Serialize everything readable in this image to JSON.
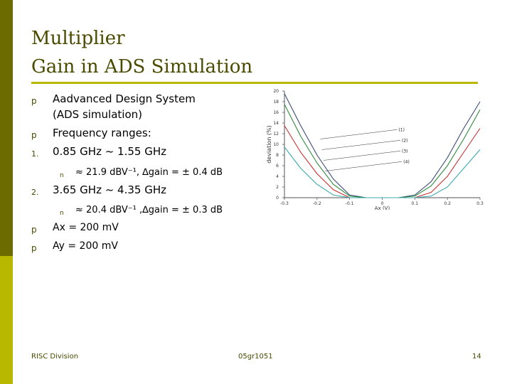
{
  "title": {
    "line1": "Multiplier",
    "line2": "Gain in ADS Simulation"
  },
  "bullets": {
    "b1_marker": "p",
    "b1_line1": "Aadvanced Design System",
    "b1_line2": "(ADS simulation)",
    "b2_marker": "p",
    "b2": "Frequency ranges:",
    "n1_marker": "1.",
    "n1": "0.85 GHz ~ 1.55 GHz",
    "n1_sub_marker": "n",
    "n1_sub": "≈ 21.9 dBV⁻¹, ∆gain = ± 0.4 dB",
    "n2_marker": "2.",
    "n2": "3.65 GHz ~ 4.35 GHz",
    "n2_sub_marker": "n",
    "n2_sub": "≈ 20.4 dBV⁻¹ ,∆gain = ± 0.3 dB",
    "b3_marker": "p",
    "b3": "Ax = 200 mV",
    "b4_marker": "p",
    "b4": "Ay = 200 mV"
  },
  "footer": {
    "left": "RISC Division",
    "center": "05gr1051",
    "right": "14"
  },
  "colors": {
    "sidebar_dark": "#6b6b00",
    "sidebar_light": "#b8b800",
    "title": "#4a4a00"
  },
  "chart_data": {
    "type": "line",
    "xlabel": "Ax (V)",
    "ylabel": "deviation (%)",
    "xlim": [
      -0.3,
      0.3
    ],
    "ylim": [
      0,
      20
    ],
    "x_ticks": [
      "-0.3",
      "-0.2",
      "-0.1",
      "0",
      "0.1",
      "0.2",
      "0.3"
    ],
    "y_ticks": [
      "0",
      "2",
      "4",
      "6",
      "8",
      "10",
      "12",
      "14",
      "16",
      "18",
      "20"
    ],
    "grid": false,
    "series": [
      {
        "name": "(1)",
        "color": "#3a4a78",
        "x": [
          -0.3,
          -0.25,
          -0.2,
          -0.15,
          -0.1,
          -0.05,
          0,
          0.05,
          0.1,
          0.15,
          0.2,
          0.25,
          0.3
        ],
        "y": [
          19.5,
          13.5,
          8,
          3.5,
          0.5,
          0,
          0,
          0,
          0.5,
          3,
          7.5,
          13,
          18
        ]
      },
      {
        "name": "(2)",
        "color": "#2e8a3a",
        "x": [
          -0.3,
          -0.25,
          -0.2,
          -0.15,
          -0.1,
          -0.05,
          0,
          0.05,
          0.1,
          0.15,
          0.2,
          0.25,
          0.3
        ],
        "y": [
          17.5,
          11.5,
          6.5,
          2.5,
          0.3,
          0,
          0,
          0,
          0.3,
          2.2,
          6,
          11,
          16.5
        ]
      },
      {
        "name": "(3)",
        "color": "#c83030",
        "x": [
          -0.3,
          -0.25,
          -0.2,
          -0.15,
          -0.1,
          -0.05,
          0,
          0.05,
          0.1,
          0.15,
          0.2,
          0.25,
          0.3
        ],
        "y": [
          13.5,
          8.5,
          4.5,
          1.5,
          0,
          0,
          0,
          0,
          0,
          1,
          4,
          8.5,
          13
        ]
      },
      {
        "name": "(4)",
        "color": "#3aa8b0",
        "x": [
          -0.3,
          -0.25,
          -0.2,
          -0.15,
          -0.1,
          -0.05,
          0,
          0.05,
          0.1,
          0.15,
          0.2,
          0.25,
          0.3
        ],
        "y": [
          9.5,
          5.5,
          2.5,
          0.5,
          0,
          0,
          0,
          0,
          0,
          0.3,
          2,
          5.5,
          9
        ]
      }
    ],
    "annotations": [
      "(1)",
      "(2)",
      "(3)",
      "(4)"
    ]
  }
}
